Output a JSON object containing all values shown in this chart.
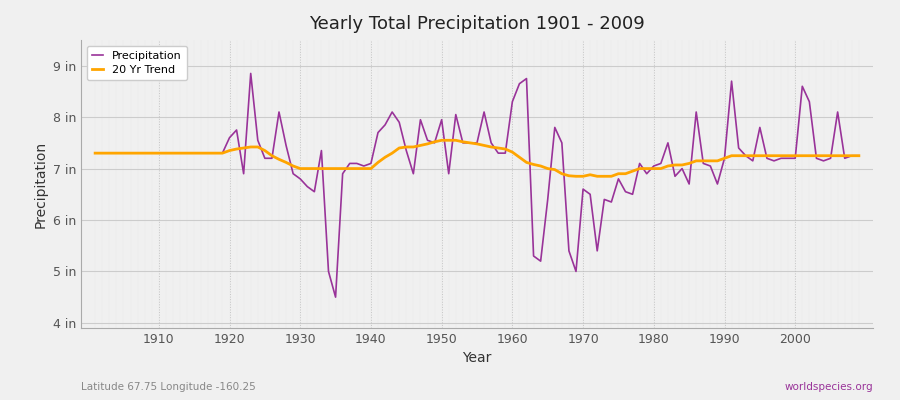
{
  "title": "Yearly Total Precipitation 1901 - 2009",
  "xlabel": "Year",
  "ylabel": "Precipitation",
  "background_color": "#f0f0f0",
  "plot_bg_color": "#f0f0f0",
  "precip_color": "#993399",
  "trend_color": "#FFA500",
  "precip_label": "Precipitation",
  "trend_label": "20 Yr Trend",
  "ylim": [
    3.9,
    9.5
  ],
  "yticks": [
    4,
    5,
    6,
    7,
    8,
    9
  ],
  "ytick_labels": [
    "4 in",
    "5 in",
    "6 in",
    "7 in",
    "8 in",
    "9 in"
  ],
  "xlim": [
    1899,
    2011
  ],
  "xticks": [
    1910,
    1920,
    1930,
    1940,
    1950,
    1960,
    1970,
    1980,
    1990,
    2000
  ],
  "bottom_left_text": "Latitude 67.75 Longitude -160.25",
  "bottom_right_text": "worldspecies.org",
  "years": [
    1901,
    1902,
    1903,
    1904,
    1905,
    1906,
    1907,
    1908,
    1909,
    1910,
    1911,
    1912,
    1913,
    1914,
    1915,
    1916,
    1917,
    1918,
    1919,
    1920,
    1921,
    1922,
    1923,
    1924,
    1925,
    1926,
    1927,
    1928,
    1929,
    1930,
    1931,
    1932,
    1933,
    1934,
    1935,
    1936,
    1937,
    1938,
    1939,
    1940,
    1941,
    1942,
    1943,
    1944,
    1945,
    1946,
    1947,
    1948,
    1949,
    1950,
    1951,
    1952,
    1953,
    1954,
    1955,
    1956,
    1957,
    1958,
    1959,
    1960,
    1961,
    1962,
    1963,
    1964,
    1965,
    1966,
    1967,
    1968,
    1969,
    1970,
    1971,
    1972,
    1973,
    1974,
    1975,
    1976,
    1977,
    1978,
    1979,
    1980,
    1981,
    1982,
    1983,
    1984,
    1985,
    1986,
    1987,
    1988,
    1989,
    1990,
    1991,
    1992,
    1993,
    1994,
    1995,
    1996,
    1997,
    1998,
    1999,
    2000,
    2001,
    2002,
    2003,
    2004,
    2005,
    2006,
    2007,
    2008,
    2009
  ],
  "precip": [
    7.3,
    7.3,
    7.3,
    7.3,
    7.3,
    7.3,
    7.3,
    7.3,
    7.3,
    7.3,
    7.3,
    7.3,
    7.3,
    7.3,
    7.3,
    7.3,
    7.3,
    7.3,
    7.3,
    7.6,
    7.75,
    6.9,
    8.85,
    7.55,
    7.2,
    7.2,
    8.1,
    7.45,
    6.9,
    6.8,
    6.65,
    6.55,
    7.35,
    5.0,
    4.5,
    6.9,
    7.1,
    7.1,
    7.05,
    7.1,
    7.7,
    7.85,
    8.1,
    7.9,
    7.35,
    6.9,
    7.95,
    7.55,
    7.5,
    7.95,
    6.9,
    8.05,
    7.5,
    7.5,
    7.5,
    8.1,
    7.5,
    7.3,
    7.3,
    8.3,
    8.65,
    8.75,
    5.3,
    5.2,
    6.4,
    7.8,
    7.5,
    5.4,
    5.0,
    6.6,
    6.5,
    5.4,
    6.4,
    6.35,
    6.8,
    6.55,
    6.5,
    7.1,
    6.9,
    7.05,
    7.1,
    7.5,
    6.85,
    7.0,
    6.7,
    8.1,
    7.1,
    7.05,
    6.7,
    7.2,
    8.7,
    7.4,
    7.25,
    7.15,
    7.8,
    7.2,
    7.15,
    7.2,
    7.2,
    7.2,
    8.6,
    8.3,
    7.2,
    7.15,
    7.2,
    8.1,
    7.2,
    7.25,
    7.25
  ],
  "trend": [
    7.3,
    7.3,
    7.3,
    7.3,
    7.3,
    7.3,
    7.3,
    7.3,
    7.3,
    7.3,
    7.3,
    7.3,
    7.3,
    7.3,
    7.3,
    7.3,
    7.3,
    7.3,
    7.3,
    7.35,
    7.38,
    7.4,
    7.42,
    7.42,
    7.35,
    7.25,
    7.18,
    7.12,
    7.05,
    7.0,
    7.0,
    7.0,
    7.0,
    7.0,
    7.0,
    7.0,
    7.0,
    7.0,
    7.0,
    7.0,
    7.12,
    7.22,
    7.3,
    7.4,
    7.42,
    7.42,
    7.45,
    7.48,
    7.52,
    7.55,
    7.55,
    7.55,
    7.52,
    7.5,
    7.48,
    7.45,
    7.42,
    7.4,
    7.38,
    7.32,
    7.22,
    7.12,
    7.08,
    7.05,
    7.0,
    6.98,
    6.9,
    6.86,
    6.85,
    6.85,
    6.88,
    6.85,
    6.85,
    6.85,
    6.9,
    6.9,
    6.95,
    7.0,
    7.0,
    7.0,
    7.0,
    7.05,
    7.07,
    7.07,
    7.1,
    7.15,
    7.15,
    7.15,
    7.15,
    7.2,
    7.25,
    7.25,
    7.25,
    7.25,
    7.25,
    7.25,
    7.25,
    7.25,
    7.25,
    7.25,
    7.25,
    7.25,
    7.25,
    7.25,
    7.25,
    7.25,
    7.25,
    7.25,
    7.25
  ]
}
